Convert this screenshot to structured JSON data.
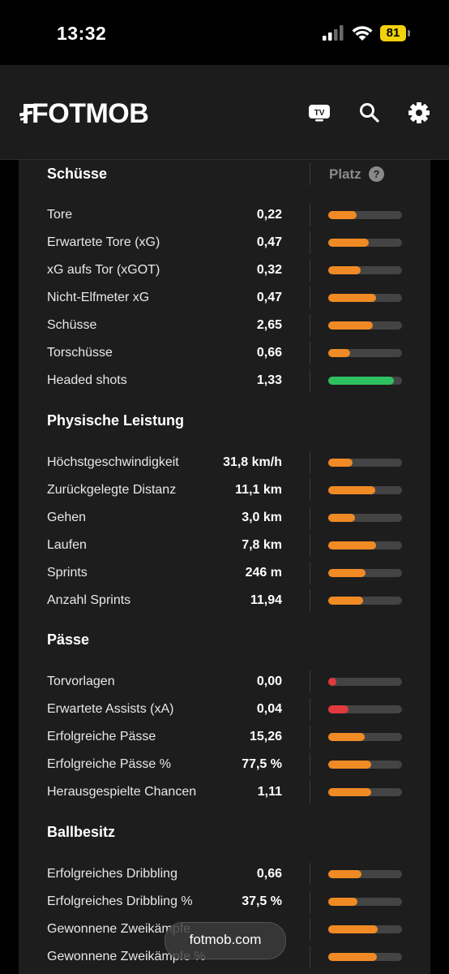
{
  "status_bar": {
    "time": "13:32",
    "battery": "81"
  },
  "header": {
    "logo_text": "FOTMOB",
    "icons": [
      "tv-icon",
      "search-icon",
      "gear-icon"
    ],
    "tv_label": "TV"
  },
  "columns": {
    "rank_label": "Platz",
    "help_symbol": "?"
  },
  "colors": {
    "orange": "#f08a24",
    "green": "#2ec162",
    "red": "#e0393e",
    "track": "#444444"
  },
  "sections": [
    {
      "title": "Schüsse",
      "rows": [
        {
          "label": "Tore",
          "value": "0,22",
          "level": 0.38,
          "color": "orange"
        },
        {
          "label": "Erwartete Tore (xG)",
          "value": "0,47",
          "level": 0.55,
          "color": "orange"
        },
        {
          "label": "xG aufs Tor (xGOT)",
          "value": "0,32",
          "level": 0.44,
          "color": "orange"
        },
        {
          "label": "Nicht-Elfmeter xG",
          "value": "0,47",
          "level": 0.65,
          "color": "orange"
        },
        {
          "label": "Schüsse",
          "value": "2,65",
          "level": 0.6,
          "color": "orange"
        },
        {
          "label": "Torschüsse",
          "value": "0,66",
          "level": 0.3,
          "color": "orange"
        },
        {
          "label": "Headed shots",
          "value": "1,33",
          "level": 0.89,
          "color": "green"
        }
      ]
    },
    {
      "title": "Physische Leistung",
      "rows": [
        {
          "label": "Höchstgeschwindigkeit",
          "value": "31,8 km/h",
          "level": 0.33,
          "color": "orange"
        },
        {
          "label": "Zurückgelegte Distanz",
          "value": "11,1 km",
          "level": 0.64,
          "color": "orange"
        },
        {
          "label": "Gehen",
          "value": "3,0 km",
          "level": 0.36,
          "color": "orange"
        },
        {
          "label": "Laufen",
          "value": "7,8 km",
          "level": 0.65,
          "color": "orange"
        },
        {
          "label": "Sprints",
          "value": "246 m",
          "level": 0.51,
          "color": "orange"
        },
        {
          "label": "Anzahl Sprints",
          "value": "11,94",
          "level": 0.47,
          "color": "orange"
        }
      ]
    },
    {
      "title": "Pässe",
      "rows": [
        {
          "label": "Torvorlagen",
          "value": "0,00",
          "level": 0.11,
          "color": "red"
        },
        {
          "label": "Erwartete Assists (xA)",
          "value": "0,04",
          "level": 0.27,
          "color": "red"
        },
        {
          "label": "Erfolgreiche Pässe",
          "value": "15,26",
          "level": 0.49,
          "color": "orange"
        },
        {
          "label": "Erfolgreiche Pässe %",
          "value": "77,5 %",
          "level": 0.58,
          "color": "orange"
        },
        {
          "label": "Herausgespielte Chancen",
          "value": "1,11",
          "level": 0.58,
          "color": "orange"
        }
      ]
    },
    {
      "title": "Ballbesitz",
      "rows": [
        {
          "label": "Erfolgreiches Dribbling",
          "value": "0,66",
          "level": 0.45,
          "color": "orange"
        },
        {
          "label": "Erfolgreiches Dribbling %",
          "value": "37,5 %",
          "level": 0.4,
          "color": "orange"
        },
        {
          "label": "Gewonnene Zweikämpfe",
          "value": "",
          "level": 0.67,
          "color": "orange"
        },
        {
          "label": "Gewonnene Zweikämpfe %",
          "value": "",
          "level": 0.66,
          "color": "orange"
        }
      ]
    }
  ],
  "floating_pill": {
    "text": "fotmob.com"
  }
}
